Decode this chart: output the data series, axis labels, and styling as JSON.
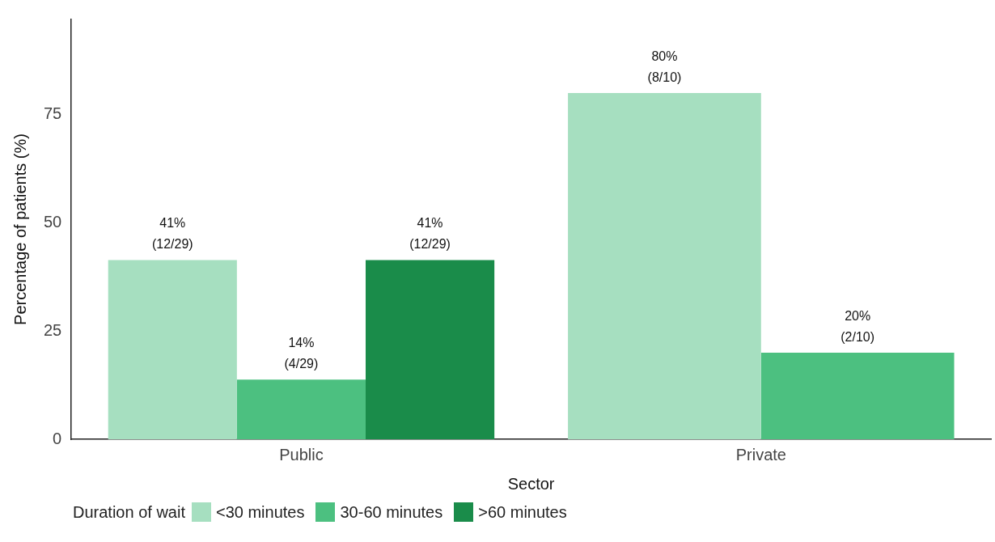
{
  "chart_data": {
    "type": "bar",
    "xlabel": "Sector",
    "ylabel": "Percentage of patients (%)",
    "legend_title": "Duration of wait",
    "legend": "bottom",
    "grid": false,
    "categories": [
      "Public",
      "Private"
    ],
    "series": [
      {
        "name": "<30 minutes",
        "color": "#a6dfc0",
        "values": [
          41.4,
          80
        ],
        "value_labels": [
          "41%\n(12/29)",
          "80%\n(8/10)"
        ]
      },
      {
        "name": "30-60 minutes",
        "color": "#4cc080",
        "values": [
          13.8,
          20
        ],
        "value_labels": [
          "14%\n(4/29)",
          "20%\n(2/10)"
        ]
      },
      {
        "name": ">60 minutes",
        "color": "#1a8c4a",
        "values": [
          41.4,
          null
        ],
        "value_labels": [
          "41%\n(12/29)",
          null
        ]
      }
    ],
    "ylim": [
      0,
      97
    ],
    "yticks": [
      0,
      25,
      50,
      75
    ]
  }
}
